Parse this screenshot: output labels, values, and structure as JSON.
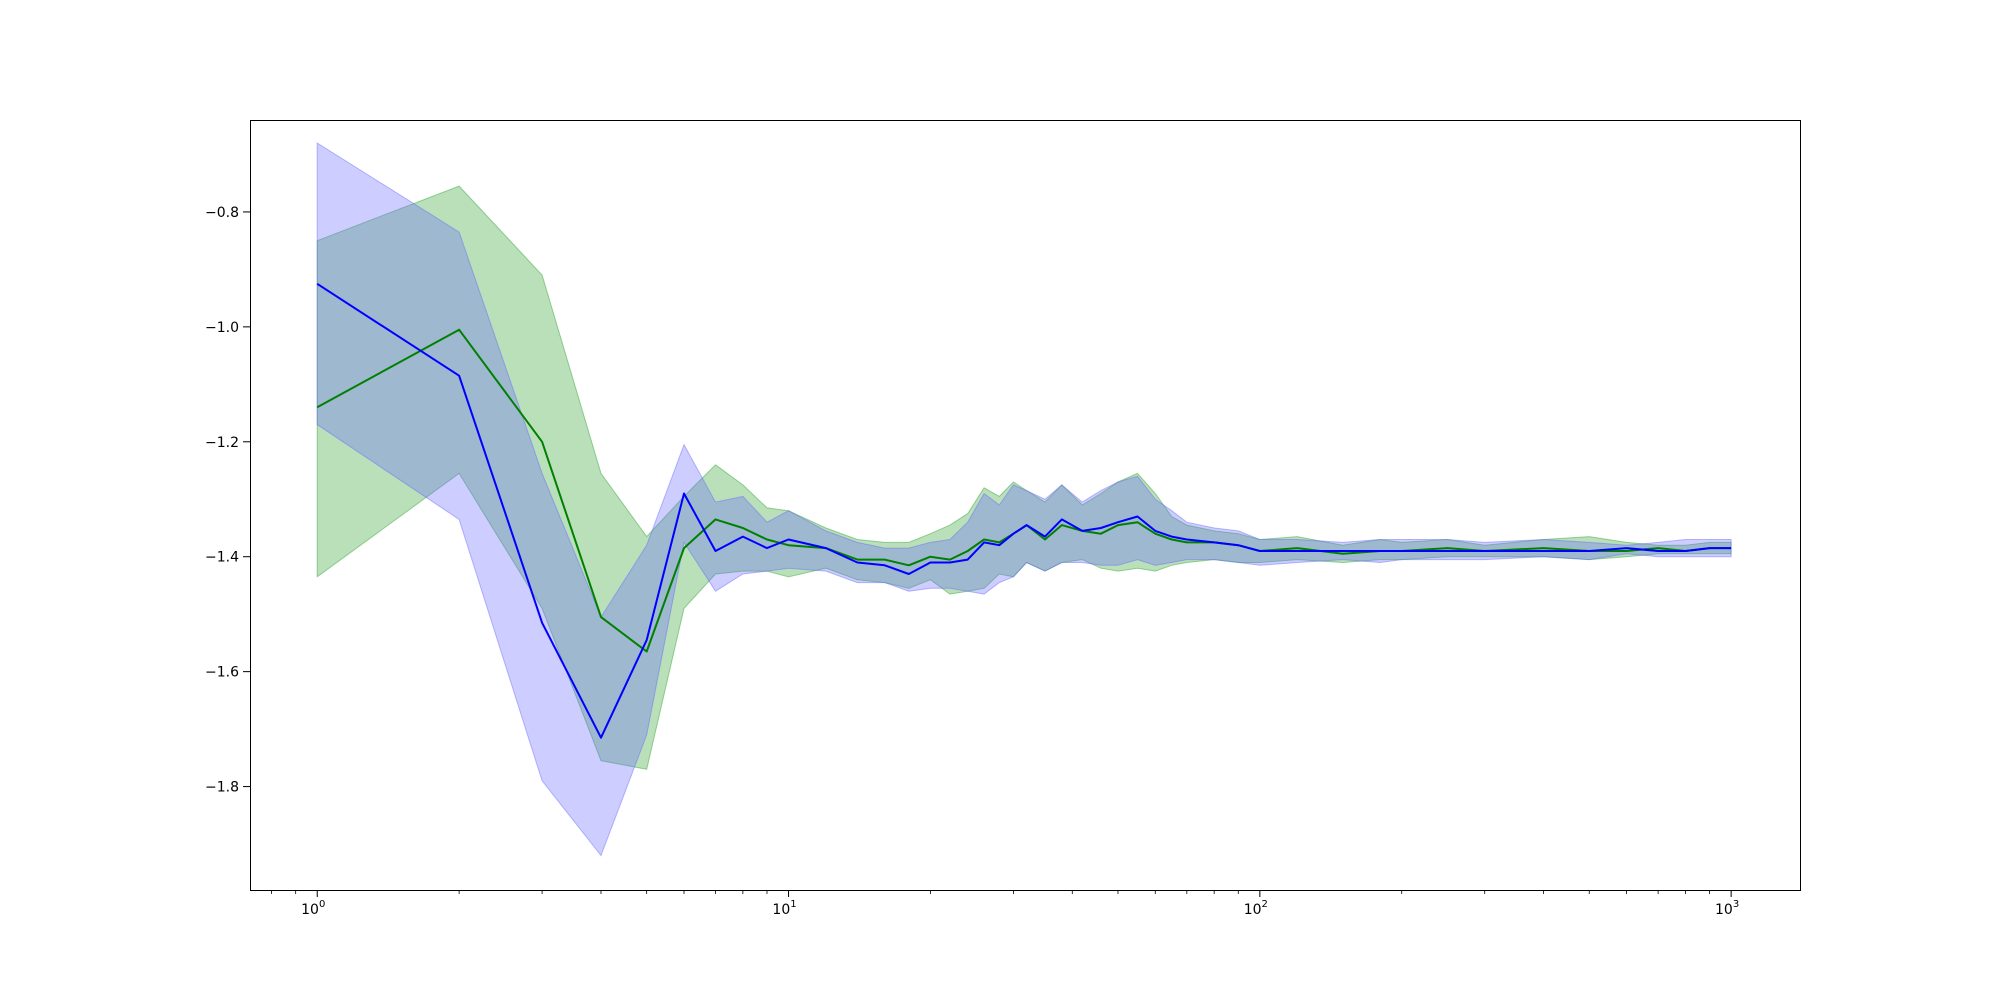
{
  "chart_data": {
    "type": "line",
    "title": "",
    "xlabel": "",
    "ylabel": "",
    "x_scale": "log",
    "xlim": [
      0.72,
      1400
    ],
    "ylim": [
      -1.98,
      -0.64
    ],
    "x_ticks": [
      {
        "value": 1,
        "base": "10",
        "exp": "0"
      },
      {
        "value": 10,
        "base": "10",
        "exp": "1"
      },
      {
        "value": 100,
        "base": "10",
        "exp": "2"
      },
      {
        "value": 1000,
        "base": "10",
        "exp": "3"
      }
    ],
    "y_ticks": [
      {
        "value": -0.8,
        "label": "−0.8"
      },
      {
        "value": -1.0,
        "label": "−1.0"
      },
      {
        "value": -1.2,
        "label": "−1.2"
      },
      {
        "value": -1.4,
        "label": "−1.4"
      },
      {
        "value": -1.6,
        "label": "−1.6"
      },
      {
        "value": -1.8,
        "label": "−1.8"
      }
    ],
    "grid": false,
    "legend": "none",
    "series": [
      {
        "color": "#008000",
        "band_color": "#2ca02c",
        "x": [
          1,
          2,
          3,
          4,
          5,
          6,
          7,
          8,
          9,
          10,
          12,
          14,
          16,
          18,
          20,
          22,
          24,
          26,
          28,
          30,
          32,
          35,
          38,
          42,
          46,
          50,
          55,
          60,
          65,
          70,
          80,
          90,
          100,
          120,
          150,
          180,
          200,
          250,
          300,
          400,
          500,
          600,
          700,
          800,
          900,
          1000
        ],
        "mean": [
          -1.14,
          -1.005,
          -1.2,
          -1.505,
          -1.565,
          -1.385,
          -1.335,
          -1.35,
          -1.37,
          -1.38,
          -1.385,
          -1.405,
          -1.405,
          -1.415,
          -1.4,
          -1.405,
          -1.39,
          -1.37,
          -1.375,
          -1.36,
          -1.345,
          -1.37,
          -1.345,
          -1.355,
          -1.36,
          -1.345,
          -1.34,
          -1.36,
          -1.37,
          -1.375,
          -1.375,
          -1.38,
          -1.39,
          -1.385,
          -1.395,
          -1.39,
          -1.39,
          -1.385,
          -1.39,
          -1.385,
          -1.39,
          -1.39,
          -1.385,
          -1.39,
          -1.385,
          -1.385
        ],
        "upper": [
          -0.85,
          -0.755,
          -0.91,
          -1.255,
          -1.365,
          -1.295,
          -1.24,
          -1.275,
          -1.315,
          -1.32,
          -1.35,
          -1.37,
          -1.375,
          -1.375,
          -1.36,
          -1.345,
          -1.325,
          -1.28,
          -1.295,
          -1.27,
          -1.285,
          -1.305,
          -1.275,
          -1.31,
          -1.29,
          -1.27,
          -1.255,
          -1.29,
          -1.33,
          -1.345,
          -1.355,
          -1.36,
          -1.37,
          -1.365,
          -1.38,
          -1.37,
          -1.375,
          -1.37,
          -1.38,
          -1.37,
          -1.365,
          -1.375,
          -1.38,
          -1.38,
          -1.375,
          -1.375
        ],
        "lower": [
          -1.435,
          -1.255,
          -1.49,
          -1.755,
          -1.77,
          -1.49,
          -1.43,
          -1.425,
          -1.425,
          -1.435,
          -1.42,
          -1.44,
          -1.445,
          -1.455,
          -1.44,
          -1.465,
          -1.46,
          -1.455,
          -1.43,
          -1.435,
          -1.41,
          -1.425,
          -1.41,
          -1.405,
          -1.42,
          -1.425,
          -1.42,
          -1.425,
          -1.415,
          -1.41,
          -1.405,
          -1.41,
          -1.41,
          -1.405,
          -1.41,
          -1.405,
          -1.405,
          -1.4,
          -1.4,
          -1.4,
          -1.405,
          -1.4,
          -1.395,
          -1.395,
          -1.395,
          -1.395
        ]
      },
      {
        "color": "#0000ff",
        "band_color": "#6666ff",
        "x": [
          1,
          2,
          3,
          4,
          5,
          6,
          7,
          8,
          9,
          10,
          12,
          14,
          16,
          18,
          20,
          22,
          24,
          26,
          28,
          30,
          32,
          35,
          38,
          42,
          46,
          50,
          55,
          60,
          65,
          70,
          80,
          90,
          100,
          120,
          150,
          180,
          200,
          250,
          300,
          400,
          500,
          600,
          700,
          800,
          900,
          1000
        ],
        "mean": [
          -0.925,
          -1.085,
          -1.515,
          -1.715,
          -1.545,
          -1.29,
          -1.39,
          -1.365,
          -1.385,
          -1.37,
          -1.385,
          -1.41,
          -1.415,
          -1.43,
          -1.41,
          -1.41,
          -1.405,
          -1.375,
          -1.38,
          -1.36,
          -1.345,
          -1.365,
          -1.335,
          -1.355,
          -1.35,
          -1.34,
          -1.33,
          -1.355,
          -1.365,
          -1.37,
          -1.375,
          -1.38,
          -1.39,
          -1.39,
          -1.39,
          -1.39,
          -1.39,
          -1.39,
          -1.39,
          -1.39,
          -1.39,
          -1.385,
          -1.39,
          -1.39,
          -1.385,
          -1.385
        ],
        "upper": [
          -0.68,
          -0.835,
          -1.255,
          -1.505,
          -1.38,
          -1.205,
          -1.305,
          -1.295,
          -1.34,
          -1.32,
          -1.355,
          -1.375,
          -1.385,
          -1.385,
          -1.375,
          -1.37,
          -1.34,
          -1.29,
          -1.31,
          -1.275,
          -1.285,
          -1.3,
          -1.275,
          -1.305,
          -1.285,
          -1.27,
          -1.26,
          -1.3,
          -1.32,
          -1.34,
          -1.35,
          -1.355,
          -1.37,
          -1.37,
          -1.375,
          -1.37,
          -1.37,
          -1.37,
          -1.375,
          -1.37,
          -1.375,
          -1.38,
          -1.375,
          -1.37,
          -1.37,
          -1.37
        ],
        "lower": [
          -1.17,
          -1.335,
          -1.79,
          -1.92,
          -1.71,
          -1.375,
          -1.46,
          -1.43,
          -1.425,
          -1.42,
          -1.425,
          -1.445,
          -1.445,
          -1.46,
          -1.455,
          -1.455,
          -1.46,
          -1.465,
          -1.445,
          -1.435,
          -1.41,
          -1.425,
          -1.41,
          -1.41,
          -1.415,
          -1.415,
          -1.405,
          -1.415,
          -1.41,
          -1.405,
          -1.405,
          -1.41,
          -1.415,
          -1.41,
          -1.405,
          -1.41,
          -1.405,
          -1.405,
          -1.405,
          -1.4,
          -1.405,
          -1.395,
          -1.4,
          -1.4,
          -1.4,
          -1.4
        ]
      }
    ]
  }
}
